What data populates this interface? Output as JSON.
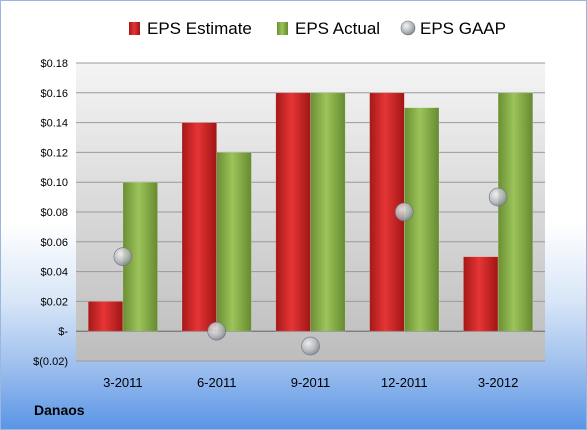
{
  "chart_data": {
    "type": "bar",
    "categories": [
      "3-2011",
      "6-2011",
      "9-2011",
      "12-2011",
      "3-2012"
    ],
    "series": [
      {
        "name": "EPS Estimate",
        "kind": "bar",
        "color": "#d42a2a",
        "values": [
          0.02,
          0.14,
          0.16,
          0.16,
          0.05
        ]
      },
      {
        "name": "EPS Actual",
        "kind": "bar",
        "color": "#8cb44a",
        "values": [
          0.1,
          0.12,
          0.16,
          0.15,
          0.16
        ]
      },
      {
        "name": "EPS GAAP",
        "kind": "marker",
        "color": "#b8bcc2",
        "values": [
          0.05,
          0.0,
          -0.01,
          0.08,
          0.09
        ]
      }
    ],
    "ylim": [
      -0.02,
      0.18
    ],
    "yticks": [
      {
        "value": 0.18,
        "label": "$0.18"
      },
      {
        "value": 0.16,
        "label": "$0.16"
      },
      {
        "value": 0.14,
        "label": "$0.14"
      },
      {
        "value": 0.12,
        "label": "$0.12"
      },
      {
        "value": 0.1,
        "label": "$0.10"
      },
      {
        "value": 0.08,
        "label": "$0.08"
      },
      {
        "value": 0.06,
        "label": "$0.06"
      },
      {
        "value": 0.04,
        "label": "$0.04"
      },
      {
        "value": 0.02,
        "label": "$0.02"
      },
      {
        "value": 0.0,
        "label": "$-"
      },
      {
        "value": -0.02,
        "label": "$(0.02)"
      }
    ],
    "grid": true,
    "legend_position": "top"
  },
  "company": "Danaos"
}
